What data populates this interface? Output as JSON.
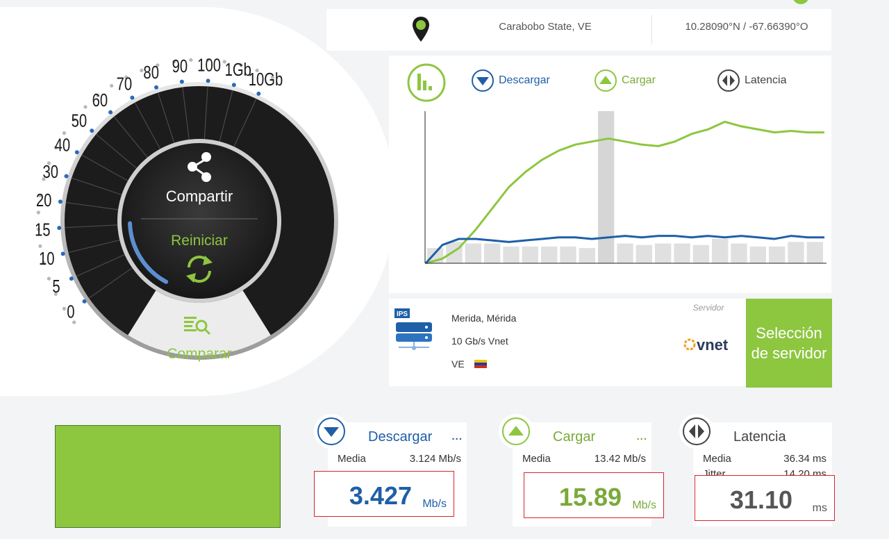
{
  "location": {
    "state": "Carabobo State, VE",
    "coords": "10.28090°N / -67.66390°O"
  },
  "gauge": {
    "scale_labels": [
      "0",
      "5",
      "10",
      "15",
      "20",
      "30",
      "40",
      "50",
      "60",
      "70",
      "80",
      "90",
      "100",
      "1Gb",
      "10Gb"
    ],
    "share_label": "Compartir",
    "restart_label": "Reiniciar",
    "compare_label": "Comparar",
    "progress": 0.3
  },
  "legend": {
    "download": "Descargar",
    "upload": "Cargar",
    "latency": "Latencia"
  },
  "chart_data": {
    "type": "line",
    "series": [
      {
        "color": "#8dc63f",
        "values": [
          0,
          3,
          10,
          22,
          36,
          50,
          60,
          68,
          74,
          78,
          80,
          82,
          80,
          78,
          77,
          80,
          85,
          88,
          93,
          90,
          88,
          86,
          87,
          86,
          86
        ]
      },
      {
        "color": "#1e5fa8",
        "values": [
          0,
          12,
          16,
          16,
          15,
          14,
          15,
          16,
          17,
          17,
          16,
          17,
          18,
          17,
          18,
          18,
          17,
          18,
          17,
          18,
          17,
          16,
          18,
          17,
          17
        ]
      }
    ],
    "bars": [
      10,
      14,
      13,
      13,
      11,
      11,
      11,
      11,
      10,
      100,
      13,
      12,
      13,
      13,
      12,
      16,
      13,
      11,
      11,
      14,
      14
    ],
    "highlight_bar": 9,
    "ylim": [
      0,
      100
    ]
  },
  "server": {
    "badge": "IPS",
    "city": "Merida, Mérida",
    "isp": "10 Gb/s Vnet",
    "country": "VE",
    "label": "Servidor",
    "logo_text": "vnet",
    "select_button": "Selección de servidor"
  },
  "stats": {
    "download": {
      "title": "Descargar",
      "more": "...",
      "avg_label": "Media",
      "avg_value": "3.124 Mb/s",
      "value": "3.427",
      "unit": "Mb/s"
    },
    "upload": {
      "title": "Cargar",
      "more": "...",
      "avg_label": "Media",
      "avg_value": "13.42 Mb/s",
      "value": "15.89",
      "unit": "Mb/s"
    },
    "latency": {
      "title": "Latencia",
      "avg_label": "Media",
      "avg_value": "36.34 ms",
      "jitter_label": "Jitter",
      "jitter_value": "14.20 ms",
      "value": "31.10",
      "unit": "ms"
    }
  },
  "colors": {
    "green": "#8dc63f",
    "blue": "#1e5fa8",
    "dark": "#1c1c1c",
    "alert": "#d9232d"
  }
}
